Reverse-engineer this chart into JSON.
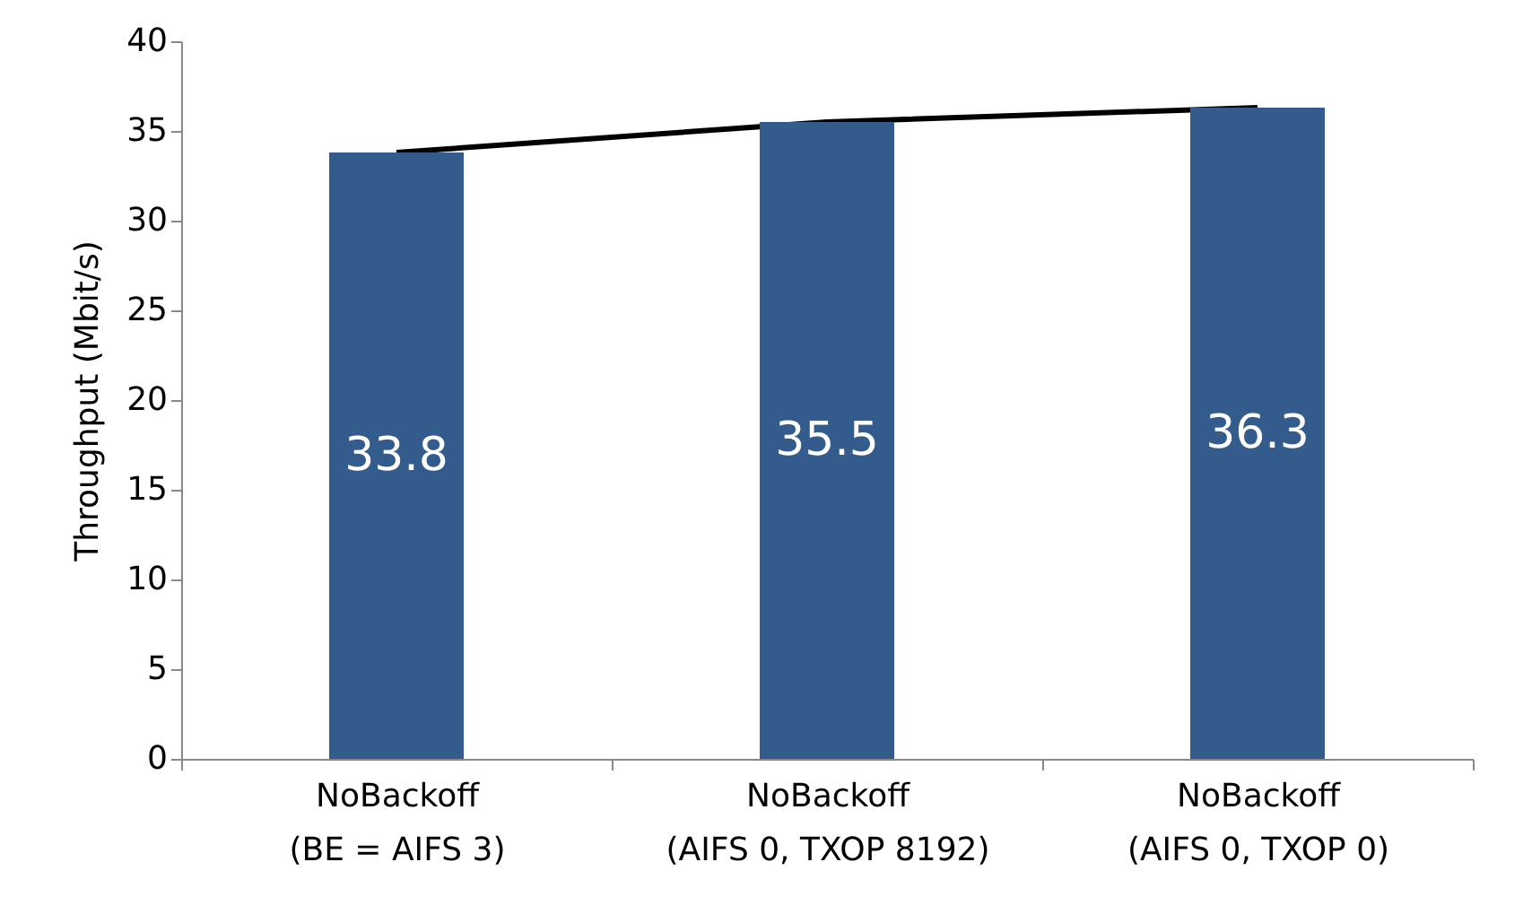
{
  "chart_data": {
    "type": "bar",
    "ylabel": "Throughput (Mbit/s)",
    "categories": [
      "NoBackoff\n(BE = AIFS 3)",
      "NoBackoff\n(AIFS 0, TXOP 8192)",
      "NoBackoff\n(AIFS 0, TXOP 0)"
    ],
    "series": [
      {
        "color": "#335c8d",
        "values": [
          33.8,
          35.5,
          36.3
        ]
      },
      {
        "type": "line",
        "color": "#000000",
        "values": [
          33.8,
          35.5,
          36.3
        ],
        "value_labels": [
          null,
          null,
          null
        ]
      }
    ],
    "ylim": [
      0,
      40
    ],
    "yticks": [
      0,
      5,
      10,
      15,
      20,
      25,
      30,
      35,
      40
    ],
    "grid": false,
    "data_labels": true,
    "marker": "none",
    "line_style": "solid"
  }
}
